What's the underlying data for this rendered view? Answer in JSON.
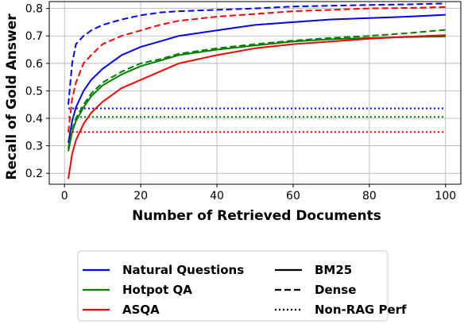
{
  "chart_data": {
    "type": "line",
    "xlabel": "Number of Retrieved Documents",
    "ylabel": "Recall of Gold Answer",
    "xlim": [
      -4,
      104
    ],
    "ylim": [
      0.16,
      0.825
    ],
    "xticks": [
      0,
      20,
      40,
      60,
      80,
      100
    ],
    "yticks": [
      0.2,
      0.3,
      0.4,
      0.5,
      0.6,
      0.7,
      0.8
    ],
    "grid": true,
    "legend_position": "bottom",
    "datasets": [
      {
        "name": "Natural Questions",
        "color": "#0000ff"
      },
      {
        "name": "Hotpot QA",
        "color": "#008000"
      },
      {
        "name": "ASQA",
        "color": "#ff0000"
      }
    ],
    "line_styles": [
      {
        "name": "BM25",
        "dash": "solid"
      },
      {
        "name": "Dense",
        "dash": "dashed"
      },
      {
        "name": "Non-RAG Perf",
        "dash": "dotted"
      }
    ],
    "x": [
      1,
      2,
      3,
      5,
      7,
      10,
      15,
      20,
      25,
      30,
      40,
      50,
      60,
      70,
      80,
      90,
      100
    ],
    "series": [
      {
        "dataset": "Natural Questions",
        "style": "BM25",
        "values": [
          0.31,
          0.39,
          0.44,
          0.5,
          0.54,
          0.58,
          0.63,
          0.66,
          0.68,
          0.7,
          0.72,
          0.74,
          0.75,
          0.76,
          0.765,
          0.77,
          0.777
        ]
      },
      {
        "dataset": "Natural Questions",
        "style": "Dense",
        "values": [
          0.45,
          0.6,
          0.67,
          0.7,
          0.72,
          0.74,
          0.76,
          0.775,
          0.785,
          0.79,
          0.795,
          0.8,
          0.807,
          0.81,
          0.813,
          0.815,
          0.818
        ]
      },
      {
        "dataset": "Natural Questions",
        "style": "Non-RAG Perf",
        "values": [
          0.436,
          0.436,
          0.436,
          0.436,
          0.436,
          0.436,
          0.436,
          0.436,
          0.436,
          0.436,
          0.436,
          0.436,
          0.436,
          0.436,
          0.436,
          0.436,
          0.436
        ]
      },
      {
        "dataset": "Hotpot QA",
        "style": "BM25",
        "values": [
          0.28,
          0.35,
          0.39,
          0.44,
          0.48,
          0.52,
          0.56,
          0.59,
          0.61,
          0.63,
          0.65,
          0.665,
          0.68,
          0.688,
          0.693,
          0.696,
          0.698
        ]
      },
      {
        "dataset": "Hotpot QA",
        "style": "Dense",
        "values": [
          0.29,
          0.36,
          0.4,
          0.45,
          0.49,
          0.53,
          0.57,
          0.6,
          0.615,
          0.635,
          0.655,
          0.67,
          0.683,
          0.693,
          0.7,
          0.71,
          0.722
        ]
      },
      {
        "dataset": "Hotpot QA",
        "style": "Non-RAG Perf",
        "values": [
          0.405,
          0.405,
          0.405,
          0.405,
          0.405,
          0.405,
          0.405,
          0.405,
          0.405,
          0.405,
          0.405,
          0.405,
          0.405,
          0.405,
          0.405,
          0.405,
          0.405
        ]
      },
      {
        "dataset": "ASQA",
        "style": "BM25",
        "values": [
          0.18,
          0.27,
          0.32,
          0.38,
          0.42,
          0.46,
          0.51,
          0.54,
          0.57,
          0.6,
          0.63,
          0.655,
          0.67,
          0.68,
          0.69,
          0.697,
          0.703
        ]
      },
      {
        "dataset": "ASQA",
        "style": "Dense",
        "values": [
          0.35,
          0.47,
          0.53,
          0.6,
          0.63,
          0.67,
          0.7,
          0.72,
          0.74,
          0.755,
          0.77,
          0.78,
          0.79,
          0.795,
          0.8,
          0.802,
          0.805
        ]
      },
      {
        "dataset": "ASQA",
        "style": "Non-RAG Perf",
        "values": [
          0.35,
          0.35,
          0.35,
          0.35,
          0.35,
          0.35,
          0.35,
          0.35,
          0.35,
          0.35,
          0.35,
          0.35,
          0.35,
          0.35,
          0.35,
          0.35,
          0.35
        ]
      }
    ]
  }
}
